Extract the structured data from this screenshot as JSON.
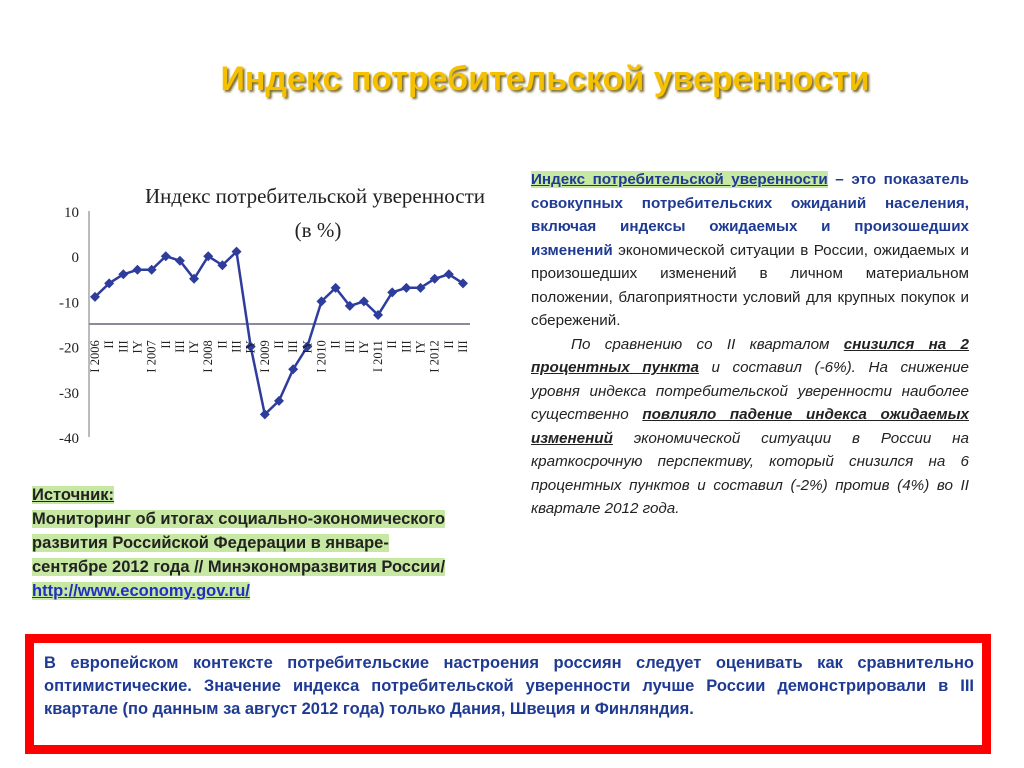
{
  "title": "Индекс потребительской уверенности",
  "chart_data": {
    "type": "line",
    "title_line1": "Индекс потребительской уверенности",
    "title_line2": "(в %)",
    "ylim": [
      -40,
      10
    ],
    "yticks": [
      10,
      0,
      -10,
      -20,
      -30,
      -40
    ],
    "reference_line": -15,
    "x_tick_labels": [
      "I 2006",
      "II",
      "III",
      "IY",
      "I 2007",
      "II",
      "III",
      "IY",
      "I 2008",
      "II",
      "III",
      "IY",
      "I 2009",
      "II",
      "III",
      "IY",
      "I 2010",
      "II",
      "III",
      "IY",
      "I 2011",
      "II",
      "III",
      "IY",
      "I 2012",
      "II",
      "III"
    ],
    "values": [
      -9,
      -6,
      -4,
      -3,
      -3,
      0,
      -1,
      -5,
      0,
      -2,
      1,
      -20,
      -35,
      -32,
      -25,
      -20,
      -10,
      -7,
      -11,
      -10,
      -13,
      -8,
      -7,
      -7,
      -5,
      -4,
      -6
    ],
    "color": "#2e3c9e",
    "reference_color": "#8a8a9a",
    "grid": false
  },
  "source": {
    "heading": "Источник:",
    "text": "Мониторинг об итогах социально-экономического развития Российской Федерации в январе-сентябре 2012 года // Минэкономразвития России/",
    "link": "http://www.economy.gov.ru/"
  },
  "definition": {
    "term": "Индекс потребительской уверенности",
    "dash": " – ",
    "bold_text": "это показатель совокупных потребительских ожиданий населения, включая индексы ожидаемых и произошедших изменений",
    "plain_text": " экономической ситуации в России, ожидаемых и произошедших изменений в личном материальном положении, благоприятности условий для крупных покупок и сбережений."
  },
  "paragraph2": {
    "t1": "По сравнению со II кварталом ",
    "b1": "снизился на 2 процентных пункта",
    "t2": " и составил (-6%). На снижение уровня индекса потребительской уверенности наиболее существенно ",
    "b2": "повлияло падение индекса ожидаемых изменений",
    "t3": " экономической ситуации в России на краткосрочную перспективу, который снизился на 6 процентных пунктов и составил (-2%) против (4%) во II квартале 2012 года."
  },
  "bottom": {
    "text": "В европейском контексте потребительские настроения россиян следует оценивать как сравнительно оптимистические. Значение индекса потребительской уверенности лучше России демонстрировали в III квартале (по данным за август 2012 года) только  Дания, Швеция и Финляндия."
  }
}
